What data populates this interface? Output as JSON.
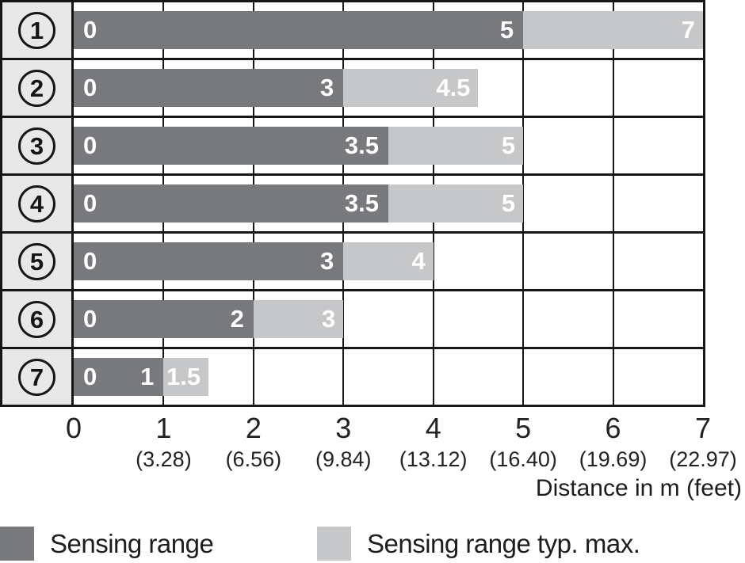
{
  "chart_data": {
    "type": "bar",
    "orientation": "horizontal",
    "xlabel": "Distance in m (feet)",
    "xlim": [
      0,
      7
    ],
    "grid": true,
    "x_ticks": [
      {
        "m": "0",
        "feet": ""
      },
      {
        "m": "1",
        "feet": "(3.28)"
      },
      {
        "m": "2",
        "feet": "(6.56)"
      },
      {
        "m": "3",
        "feet": "(9.84)"
      },
      {
        "m": "4",
        "feet": "(13.12)"
      },
      {
        "m": "5",
        "feet": "(16.40)"
      },
      {
        "m": "6",
        "feet": "(19.69)"
      },
      {
        "m": "7",
        "feet": "(22.97)"
      }
    ],
    "rows": [
      {
        "id": "1",
        "zero_label": "0",
        "sensing_range": 5,
        "sensing_range_label": "5",
        "typ_max": 7,
        "typ_max_label": "7"
      },
      {
        "id": "2",
        "zero_label": "0",
        "sensing_range": 3,
        "sensing_range_label": "3",
        "typ_max": 4.5,
        "typ_max_label": "4.5"
      },
      {
        "id": "3",
        "zero_label": "0",
        "sensing_range": 3.5,
        "sensing_range_label": "3.5",
        "typ_max": 5,
        "typ_max_label": "5"
      },
      {
        "id": "4",
        "zero_label": "0",
        "sensing_range": 3.5,
        "sensing_range_label": "3.5",
        "typ_max": 5,
        "typ_max_label": "5"
      },
      {
        "id": "5",
        "zero_label": "0",
        "sensing_range": 3,
        "sensing_range_label": "3",
        "typ_max": 4,
        "typ_max_label": "4"
      },
      {
        "id": "6",
        "zero_label": "0",
        "sensing_range": 2,
        "sensing_range_label": "2",
        "typ_max": 3,
        "typ_max_label": "3"
      },
      {
        "id": "7",
        "zero_label": "0",
        "sensing_range": 1,
        "sensing_range_label": "1",
        "typ_max": 1.5,
        "typ_max_label": "1.5"
      }
    ],
    "legend": [
      {
        "label": "Sensing range",
        "color": "#77797c"
      },
      {
        "label": "Sensing range typ. max.",
        "color": "#c6c7c9"
      }
    ]
  },
  "colors": {
    "bar_dark": "#77797c",
    "bar_light": "#c6c7c9",
    "row_header_bg": "#e8e8e8",
    "border": "#161616",
    "text": "#1d1d1b"
  }
}
